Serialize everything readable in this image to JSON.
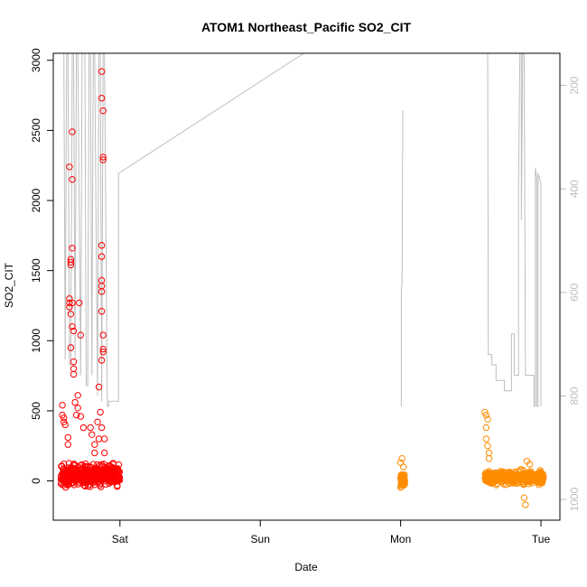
{
  "chart_data": {
    "type": "scatter",
    "title": "ATOM1 Northeast_Pacific SO2_CIT",
    "xlabel": "Date",
    "ylabel": "SO2_CIT",
    "x_ticks": [
      "Sat",
      "Sun",
      "Mon",
      "Tue"
    ],
    "x_tick_days": [
      1,
      2,
      3,
      4
    ],
    "xlim_days": [
      0.525,
      4.135
    ],
    "ylim": [
      -280,
      3050
    ],
    "y_ticks": [
      0,
      500,
      1000,
      1500,
      2000,
      2500,
      3000
    ],
    "right_axis": {
      "description": "pressure (hPa), reversed, shown in grey",
      "ticks": [
        200,
        400,
        600,
        800,
        1000
      ],
      "range_top": 138,
      "range_bottom": 1040,
      "color": "#bebebe"
    },
    "series": [
      {
        "color": "#ff0000",
        "x_range_days": [
          0.58,
          1.0
        ],
        "baseline": 40,
        "spread": 55,
        "outliers": [
          [
            0.59,
            540
          ],
          [
            0.59,
            470
          ],
          [
            0.6,
            450
          ],
          [
            0.6,
            420
          ],
          [
            0.61,
            400
          ],
          [
            0.63,
            310
          ],
          [
            0.63,
            260
          ],
          [
            0.64,
            2240
          ],
          [
            0.64,
            1300
          ],
          [
            0.64,
            1270
          ],
          [
            0.64,
            1240
          ],
          [
            0.65,
            1580
          ],
          [
            0.65,
            1560
          ],
          [
            0.65,
            1540
          ],
          [
            0.65,
            1190
          ],
          [
            0.65,
            950
          ],
          [
            0.66,
            2490
          ],
          [
            0.66,
            2150
          ],
          [
            0.66,
            1660
          ],
          [
            0.66,
            1270
          ],
          [
            0.66,
            1100
          ],
          [
            0.67,
            1070
          ],
          [
            0.67,
            850
          ],
          [
            0.67,
            800
          ],
          [
            0.67,
            760
          ],
          [
            0.68,
            560
          ],
          [
            0.69,
            470
          ],
          [
            0.71,
            1270
          ],
          [
            0.72,
            1040
          ],
          [
            0.72,
            460
          ],
          [
            0.7,
            610
          ],
          [
            0.7,
            520
          ],
          [
            0.74,
            380
          ],
          [
            0.79,
            380
          ],
          [
            0.8,
            330
          ],
          [
            0.82,
            260
          ],
          [
            0.82,
            200
          ],
          [
            0.84,
            420
          ],
          [
            0.85,
            300
          ],
          [
            0.85,
            670
          ],
          [
            0.87,
            2920
          ],
          [
            0.87,
            2730
          ],
          [
            0.88,
            2640
          ],
          [
            0.88,
            2310
          ],
          [
            0.88,
            2290
          ],
          [
            0.87,
            1680
          ],
          [
            0.87,
            1600
          ],
          [
            0.87,
            1430
          ],
          [
            0.87,
            1390
          ],
          [
            0.87,
            1350
          ],
          [
            0.87,
            1210
          ],
          [
            0.88,
            1040
          ],
          [
            0.88,
            940
          ],
          [
            0.88,
            920
          ],
          [
            0.87,
            860
          ],
          [
            0.86,
            490
          ],
          [
            0.87,
            380
          ],
          [
            0.89,
            300
          ],
          [
            0.89,
            200
          ]
        ]
      },
      {
        "color": "#ff8c00",
        "x_range_days": [
          3.0,
          3.03
        ],
        "baseline": 0,
        "spread": 40,
        "outliers": [
          [
            3.01,
            160
          ],
          [
            3.02,
            100
          ],
          [
            3.0,
            130
          ]
        ]
      },
      {
        "color": "#ff8c00",
        "x_range_days": [
          3.6,
          4.02
        ],
        "baseline": 25,
        "spread": 35,
        "outliers": [
          [
            3.6,
            490
          ],
          [
            3.61,
            470
          ],
          [
            3.62,
            440
          ],
          [
            3.61,
            380
          ],
          [
            3.61,
            300
          ],
          [
            3.62,
            250
          ],
          [
            3.63,
            200
          ],
          [
            3.63,
            160
          ],
          [
            3.9,
            140
          ],
          [
            3.92,
            120
          ],
          [
            3.89,
            -170
          ],
          [
            3.88,
            -120
          ]
        ]
      }
    ],
    "pressure_line": [
      [
        0.6,
        138
      ],
      [
        0.61,
        730
      ],
      [
        0.62,
        138
      ],
      [
        0.63,
        138
      ],
      [
        0.64,
        740
      ],
      [
        0.65,
        740
      ],
      [
        0.66,
        138
      ],
      [
        0.67,
        138
      ],
      [
        0.68,
        730
      ],
      [
        0.69,
        138
      ],
      [
        0.7,
        138
      ],
      [
        0.72,
        760
      ],
      [
        0.73,
        138
      ],
      [
        0.75,
        138
      ],
      [
        0.76,
        780
      ],
      [
        0.77,
        780
      ],
      [
        0.78,
        138
      ],
      [
        0.79,
        138
      ],
      [
        0.8,
        760
      ],
      [
        0.81,
        138
      ],
      [
        0.82,
        138
      ],
      [
        0.84,
        800
      ],
      [
        0.85,
        138
      ],
      [
        0.86,
        138
      ],
      [
        0.87,
        810
      ],
      [
        0.88,
        138
      ],
      [
        0.89,
        138
      ],
      [
        0.91,
        820
      ],
      [
        0.92,
        820
      ],
      [
        0.92,
        810
      ],
      [
        0.99,
        810
      ],
      [
        0.99,
        370
      ],
      [
        2.31,
        138
      ],
      [
        3.62,
        138
      ],
      [
        3.625,
        720
      ],
      [
        3.65,
        720
      ],
      [
        3.65,
        740
      ],
      [
        3.68,
        740
      ],
      [
        3.68,
        770
      ],
      [
        3.74,
        770
      ],
      [
        3.74,
        790
      ],
      [
        3.79,
        790
      ],
      [
        3.79,
        680
      ],
      [
        3.81,
        680
      ],
      [
        3.81,
        760
      ],
      [
        3.84,
        760
      ],
      [
        3.84,
        390
      ],
      [
        3.85,
        138
      ],
      [
        3.86,
        138
      ],
      [
        3.86,
        460
      ],
      [
        3.87,
        138
      ],
      [
        3.88,
        138
      ],
      [
        3.89,
        760
      ],
      [
        3.95,
        760
      ],
      [
        3.95,
        820
      ],
      [
        3.96,
        820
      ],
      [
        3.96,
        360
      ],
      [
        3.97,
        380
      ],
      [
        3.97,
        820
      ],
      [
        3.98,
        820
      ],
      [
        3.98,
        370
      ],
      [
        4.0,
        390
      ],
      [
        4.0,
        820
      ],
      [
        3.005,
        820
      ],
      [
        3.005,
        600
      ],
      [
        3.01,
        580
      ],
      [
        3.015,
        250
      ],
      [
        3.02,
        250
      ]
    ]
  }
}
